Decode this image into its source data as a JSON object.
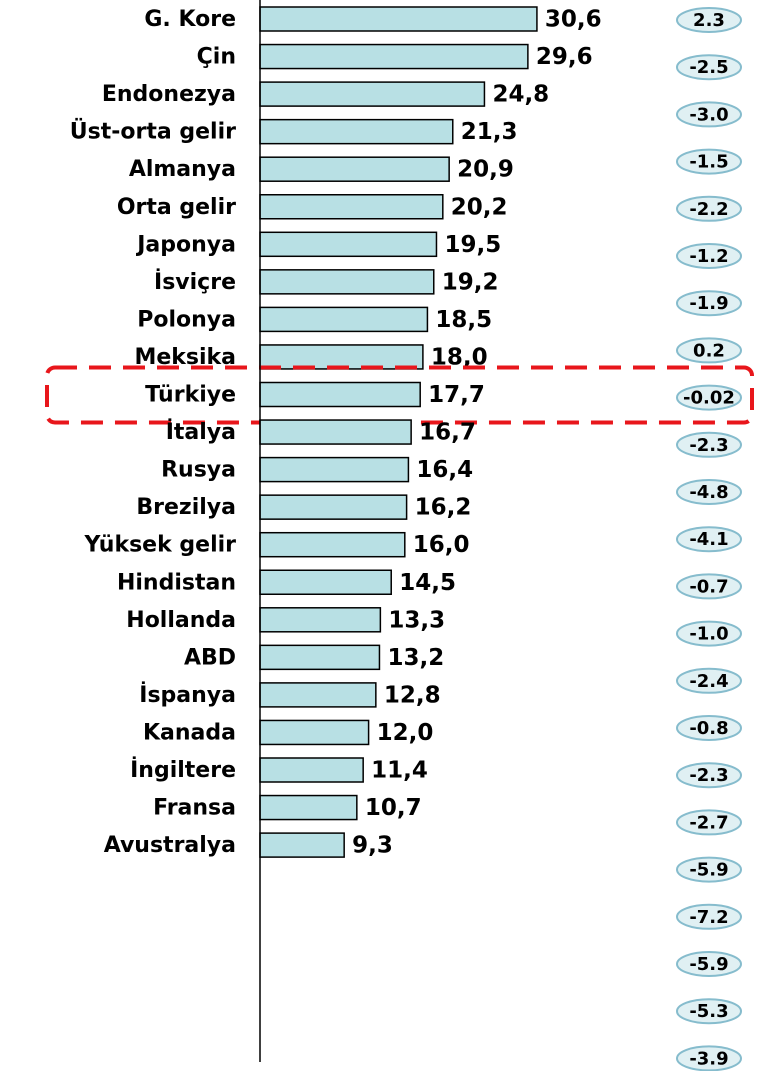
{
  "chart_data": {
    "type": "bar",
    "orientation": "horizontal",
    "categories": [
      "G. Kore",
      "Çin",
      "Endonezya",
      "Üst-orta gelir",
      "Almanya",
      "Orta gelir",
      "Japonya",
      "İsviçre",
      "Polonya",
      "Meksika",
      "Türkiye",
      "İtalya",
      "Rusya",
      "Brezilya",
      "Yüksek gelir",
      "Hindistan",
      "Hollanda",
      "ABD",
      "İspanya",
      "Kanada",
      "İngiltere",
      "Fransa",
      "Avustralya"
    ],
    "values": [
      30.6,
      29.6,
      24.8,
      21.3,
      20.9,
      20.2,
      19.5,
      19.2,
      18.5,
      18.0,
      17.7,
      16.7,
      16.4,
      16.2,
      16.0,
      14.5,
      13.3,
      13.2,
      12.8,
      12.0,
      11.4,
      10.7,
      9.3
    ],
    "value_labels": [
      "30,6",
      "29,6",
      "24,8",
      "21,3",
      "20,9",
      "20,2",
      "19,5",
      "19,2",
      "18,5",
      "18,0",
      "17,7",
      "16,7",
      "16,4",
      "16,2",
      "16,0",
      "14,5",
      "13,3",
      "13,2",
      "12,8",
      "12,0",
      "11,4",
      "10,7",
      "9,3"
    ],
    "side_values": [
      2.3,
      -2.5,
      -3.0,
      -1.5,
      -2.2,
      -1.2,
      -1.9,
      0.2,
      -0.02,
      -2.3,
      -4.8,
      -4.1,
      -0.7,
      -1.0,
      -2.4,
      -0.8,
      -2.3,
      -2.7,
      -5.9,
      -7.2,
      -5.9,
      -5.3,
      -3.9
    ],
    "side_labels": [
      "2.3",
      "-2.5",
      "-3.0",
      "-1.5",
      "-2.2",
      "-1.2",
      "-1.9",
      "0.2",
      "-0.02",
      "-2.3",
      "-4.8",
      "-4.1",
      "-0.7",
      "-1.0",
      "-2.4",
      "-0.8",
      "-2.3",
      "-2.7",
      "-5.9",
      "-7.2",
      "-5.9",
      "-5.3",
      "-3.9"
    ],
    "color": "#b8e0e4",
    "side_color": "#e0f0f3",
    "highlight": "Türkiye",
    "highlight_color": "#e8161b",
    "xlim": [
      0,
      40
    ]
  }
}
